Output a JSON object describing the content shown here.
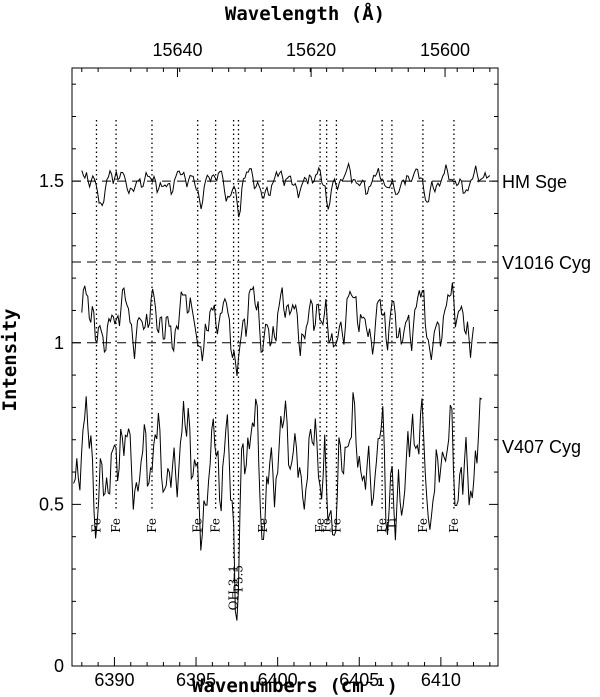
{
  "chart_data": {
    "type": "line",
    "xlabel_bottom": "Wavenumbers (cm⁻¹)",
    "xlabel_top": "Wavelength (Å)",
    "ylabel": "Intensity",
    "xlim": [
      6387.4,
      6413.5
    ],
    "ylim": [
      0,
      1.85
    ],
    "x_ticks": [
      6390,
      6395,
      6400,
      6405,
      6410
    ],
    "y_ticks": [
      0,
      0.5,
      1,
      1.5
    ],
    "y_tick_labels": [
      "0",
      "0.5",
      "1",
      "1.5"
    ],
    "top_ticks": [
      15640,
      15620,
      15600
    ],
    "reference_lines": [
      1.5,
      1.25,
      1.0
    ],
    "series": [
      {
        "name": "HM Sge",
        "label_y": 1.5,
        "offset": 1.5,
        "x_range": [
          6388.0,
          6413.0
        ],
        "amplitude": 0.05,
        "dips": [
          [
            6389.2,
            0.05
          ],
          [
            6392.3,
            0.03
          ],
          [
            6395.3,
            0.04
          ],
          [
            6396.9,
            0.04
          ],
          [
            6397.6,
            0.09
          ],
          [
            6399.1,
            0.04
          ],
          [
            6403.1,
            0.05
          ],
          [
            6406.7,
            0.04
          ],
          [
            6409.2,
            0.04
          ]
        ]
      },
      {
        "name": "V1016 Cyg",
        "label_y": 1.25,
        "offset": 1.08,
        "x_range": [
          6388.0,
          6412.0
        ],
        "amplitude": 0.12,
        "dips": [
          [
            6388.9,
            0.08
          ],
          [
            6390.1,
            0.05
          ],
          [
            6392.6,
            0.07
          ],
          [
            6395.1,
            0.1
          ],
          [
            6396.5,
            0.06
          ],
          [
            6397.5,
            0.14
          ],
          [
            6399.1,
            0.08
          ],
          [
            6402.7,
            0.1
          ],
          [
            6403.5,
            0.06
          ],
          [
            6406.7,
            0.1
          ],
          [
            6408.2,
            0.06
          ],
          [
            6409.4,
            0.08
          ]
        ]
      },
      {
        "name": "V407 Cyg",
        "label_y": 0.68,
        "offset": 0.65,
        "x_range": [
          6387.5,
          6412.5
        ],
        "amplitude": 0.2,
        "dips": [
          [
            6388.9,
            0.2
          ],
          [
            6390.1,
            0.12
          ],
          [
            6392.3,
            0.14
          ],
          [
            6395.3,
            0.2
          ],
          [
            6396.5,
            0.18
          ],
          [
            6397.5,
            0.42
          ],
          [
            6399.1,
            0.2
          ],
          [
            6402.7,
            0.2
          ],
          [
            6403.1,
            0.15
          ],
          [
            6403.5,
            0.12
          ],
          [
            6406.7,
            0.25
          ],
          [
            6407.2,
            0.2
          ],
          [
            6409.2,
            0.16
          ],
          [
            6410.9,
            0.2
          ]
        ]
      }
    ],
    "line_markers": [
      {
        "x": 6388.9,
        "label": "Fe"
      },
      {
        "x": 6390.1,
        "label": "Fe"
      },
      {
        "x": 6392.3,
        "label": "Fe"
      },
      {
        "x": 6395.1,
        "label": "Fe"
      },
      {
        "x": 6396.2,
        "label": "Fe"
      },
      {
        "x": 6397.3,
        "label": "OH 3–1"
      },
      {
        "x": 6397.6,
        "label": "P5.5"
      },
      {
        "x": 6399.1,
        "label": "Fe"
      },
      {
        "x": 6402.6,
        "label": "Fe"
      },
      {
        "x": 6403.0,
        "label": "Fe"
      },
      {
        "x": 6403.6,
        "label": "Fe"
      },
      {
        "x": 6406.4,
        "label": "Fe"
      },
      {
        "x": 6407.0,
        "label": "Ti"
      },
      {
        "x": 6408.9,
        "label": "Fe"
      },
      {
        "x": 6410.8,
        "label": "Fe"
      }
    ]
  }
}
